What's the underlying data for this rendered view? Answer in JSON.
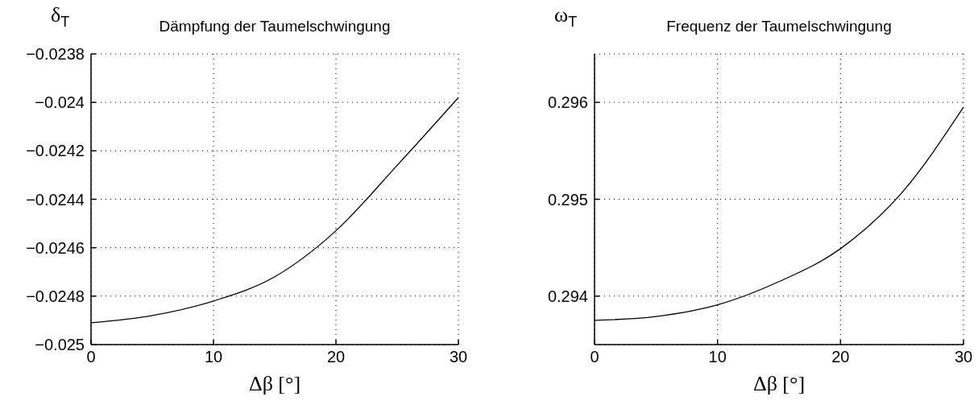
{
  "chart_data": [
    {
      "type": "line",
      "title": "Dämpfung der Taumelschwingung",
      "ylabel": "δ$_{T}$",
      "xlabel": "Δβ [°]",
      "color": "#000000",
      "x": [
        0,
        5,
        10,
        15,
        20,
        25,
        30
      ],
      "values": [
        -0.02491,
        -0.02488,
        -0.02482,
        -0.02472,
        -0.02453,
        -0.02426,
        -0.02398
      ],
      "xlim": [
        0,
        30
      ],
      "xticks": [
        0,
        10,
        20,
        30
      ],
      "ylim": [
        -0.025,
        -0.0238
      ],
      "yticks": [
        -0.025,
        -0.0248,
        -0.0246,
        -0.0244,
        -0.0242,
        -0.024,
        -0.0238
      ],
      "grid": true
    },
    {
      "type": "line",
      "title": "Frequenz der Taumelschwingung",
      "ylabel": "ω$_{T}$",
      "xlabel": "Δβ [°]",
      "color": "#000000",
      "x": [
        0,
        5,
        10,
        15,
        20,
        25,
        30
      ],
      "values": [
        0.29375,
        0.29379,
        0.29391,
        0.29415,
        0.29449,
        0.29507,
        0.29595
      ],
      "xlim": [
        0,
        30
      ],
      "xticks": [
        0,
        10,
        20,
        30
      ],
      "ylim": [
        0.2935,
        0.2965
      ],
      "yticks": [
        0.294,
        0.295,
        0.296
      ],
      "grid": true
    }
  ]
}
